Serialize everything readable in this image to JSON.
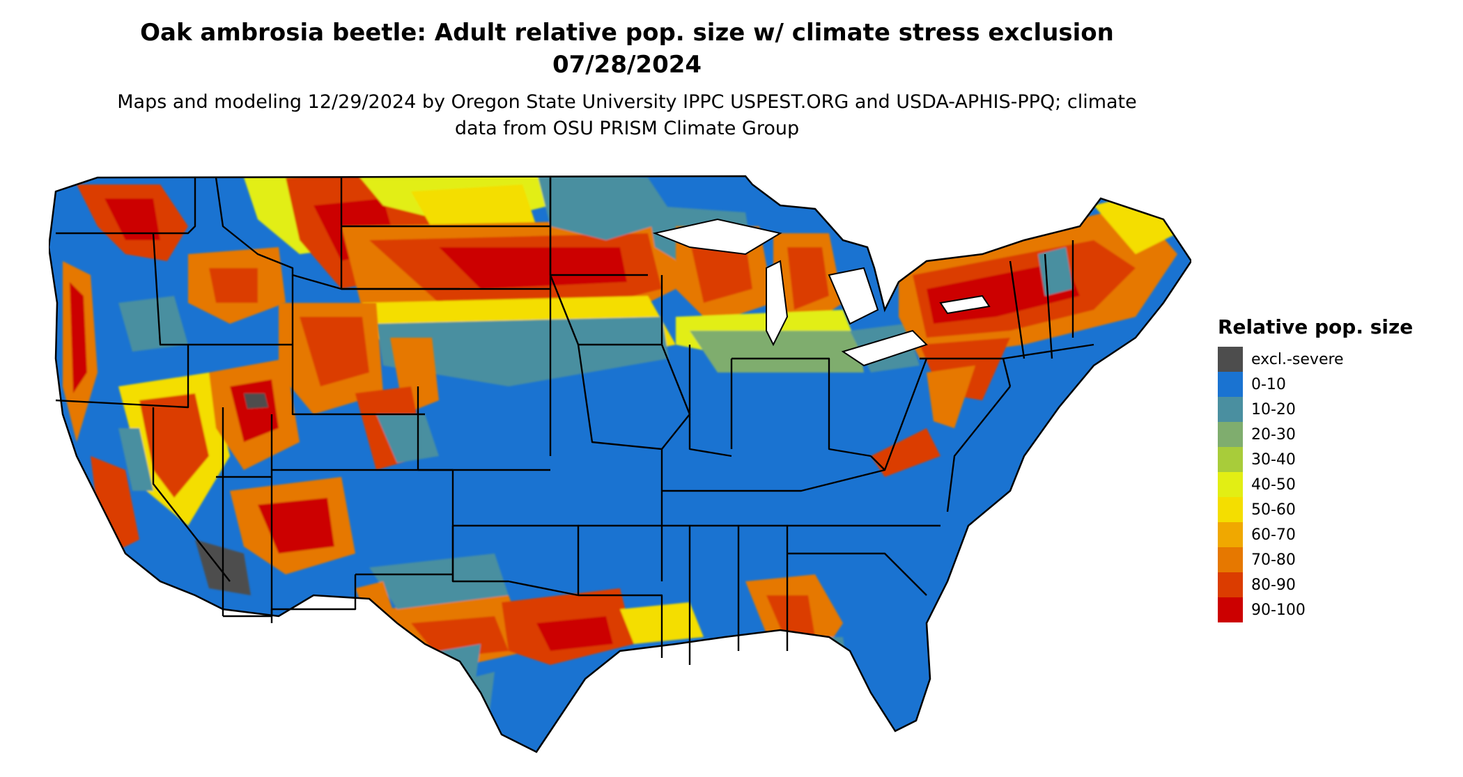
{
  "title": "Oak ambrosia beetle: Adult relative pop. size w/ climate stress exclusion 07/28/2024",
  "subtitle": "Maps and modeling 12/29/2024 by Oregon State University IPPC USPEST.ORG and USDA-APHIS-PPQ; climate data from OSU PRISM Climate Group",
  "legend": {
    "title": "Relative pop. size",
    "items": [
      {
        "label": "excl.-severe",
        "color": "#4d4d4d"
      },
      {
        "label": "0-10",
        "color": "#1a73d1"
      },
      {
        "label": "10-20",
        "color": "#4a8fa0"
      },
      {
        "label": "20-30",
        "color": "#7fad6e"
      },
      {
        "label": "30-40",
        "color": "#a8cc3a"
      },
      {
        "label": "40-50",
        "color": "#e2ee14"
      },
      {
        "label": "50-60",
        "color": "#f4de00"
      },
      {
        "label": "60-70",
        "color": "#f0a800"
      },
      {
        "label": "70-80",
        "color": "#e67800"
      },
      {
        "label": "80-90",
        "color": "#db3c00"
      },
      {
        "label": "90-100",
        "color": "#cc0000"
      }
    ]
  }
}
